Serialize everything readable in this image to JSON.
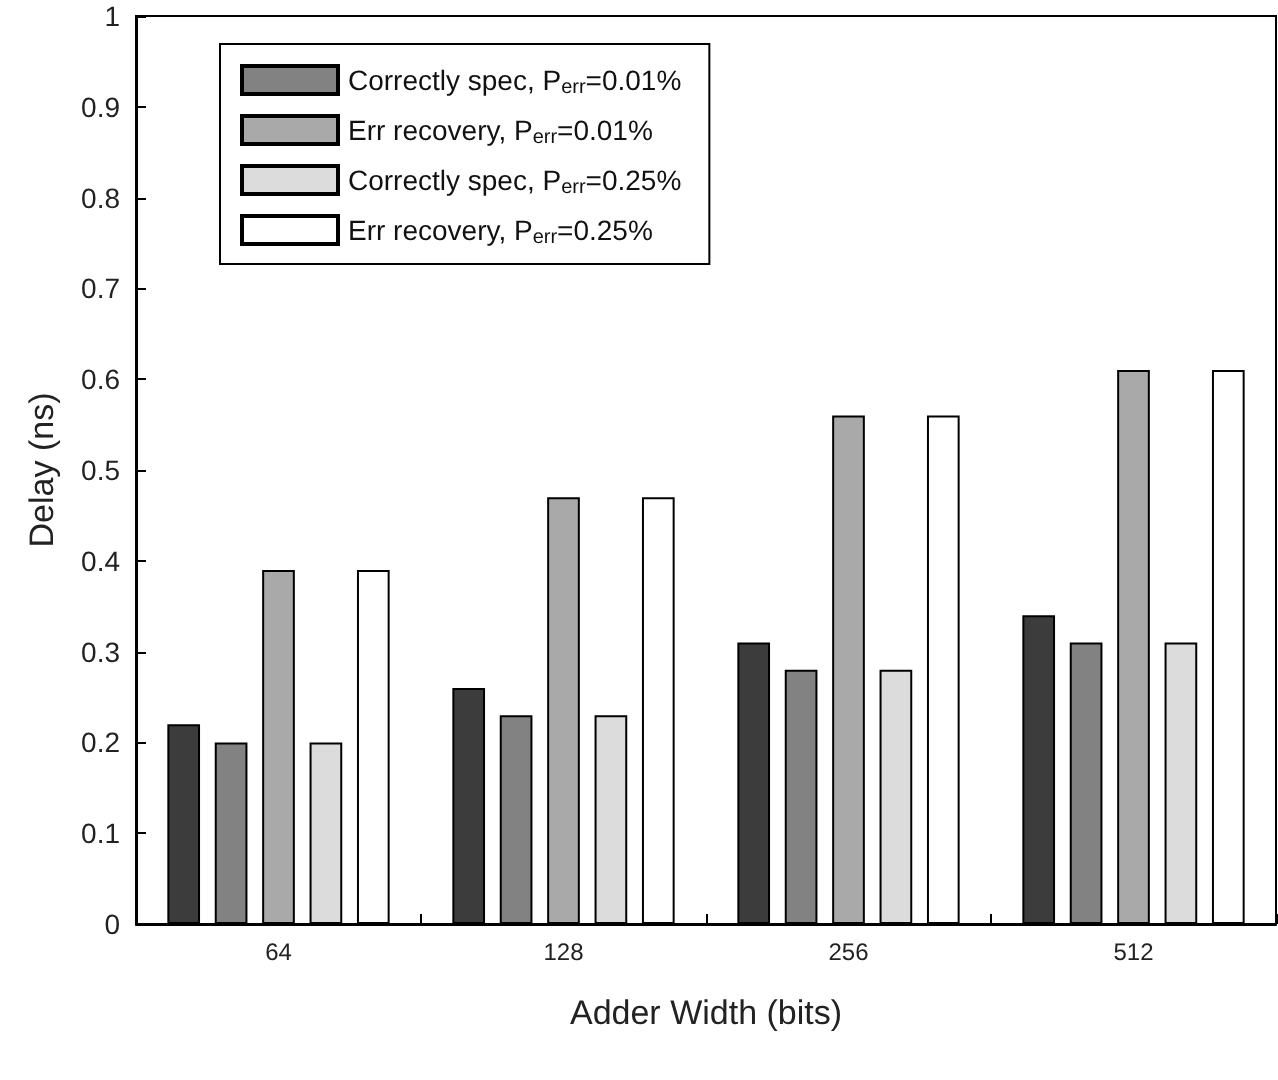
{
  "chart_data": {
    "type": "bar",
    "xlabel": "Adder Width (bits)",
    "ylabel": "Delay (ns)",
    "categories": [
      "64",
      "128",
      "256",
      "512"
    ],
    "series": [
      {
        "color": "#3c3c3c",
        "values": [
          0.22,
          0.26,
          0.31,
          0.34
        ]
      },
      {
        "name": "Correctly spec, P$_{err}$=0.01%",
        "color": "#828282",
        "values": [
          0.2,
          0.23,
          0.28,
          0.31
        ]
      },
      {
        "name": "Err recovery, P$_{err}$=0.01%",
        "color": "#a9a9a9",
        "values": [
          0.39,
          0.47,
          0.56,
          0.61
        ]
      },
      {
        "name": "Correctly spec, P$_{err}$=0.25%",
        "color": "#dcdcdc",
        "values": [
          0.2,
          0.23,
          0.28,
          0.31
        ]
      },
      {
        "name": "Err recovery, P$_{err}$=0.25%",
        "color": "#ffffff",
        "values": [
          0.39,
          0.47,
          0.56,
          0.61
        ]
      }
    ],
    "ylim": [
      0,
      1
    ],
    "yticks": [
      0,
      0.1,
      0.2,
      0.3,
      0.4,
      0.5,
      0.6,
      0.7,
      0.8,
      0.9,
      1
    ],
    "grid": false,
    "legend": "top left"
  }
}
